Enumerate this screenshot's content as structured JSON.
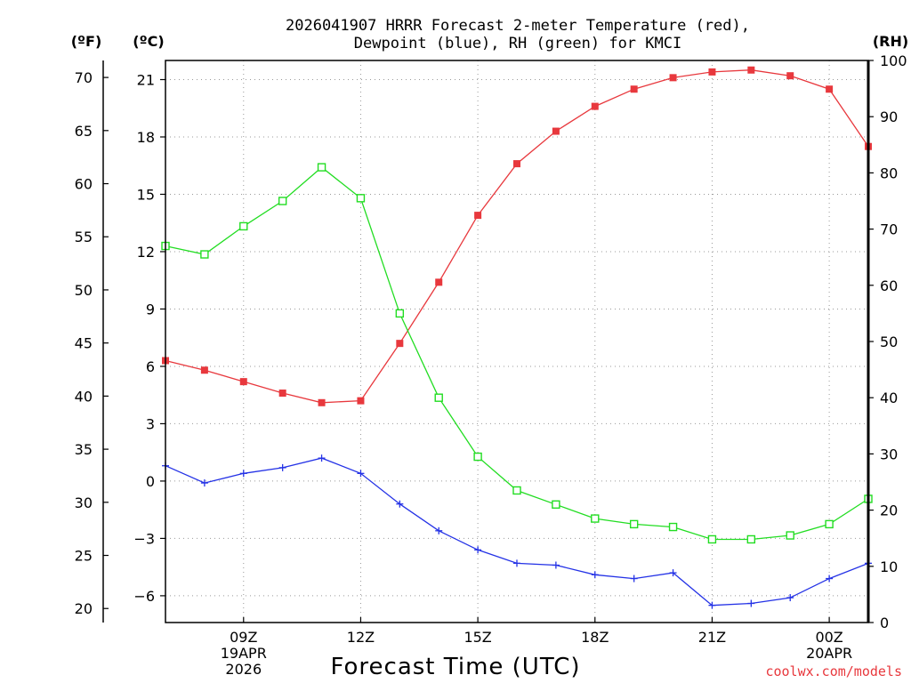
{
  "chart_data": {
    "type": "line",
    "title_line1": "2026041907 HRRR Forecast 2-meter Temperature (red),",
    "title_line2": "Dewpoint (blue), RH (green) for KMCI",
    "xlabel": "Forecast Time (UTC)",
    "credit": "coolwx.com/models",
    "units": {
      "fahrenheit": "(ºF)",
      "celsius": "(ºC)",
      "rh": "(RH)"
    },
    "x_hours": [
      7,
      8,
      9,
      10,
      11,
      12,
      13,
      14,
      15,
      16,
      17,
      18,
      19,
      20,
      21,
      22,
      23,
      24,
      25
    ],
    "xlim": [
      7,
      25
    ],
    "x_ticks": [
      {
        "hour": 9,
        "labels": [
          "09Z",
          "19APR",
          "2026"
        ]
      },
      {
        "hour": 12,
        "labels": [
          "12Z"
        ]
      },
      {
        "hour": 15,
        "labels": [
          "15Z"
        ]
      },
      {
        "hour": 18,
        "labels": [
          "18Z"
        ]
      },
      {
        "hour": 21,
        "labels": [
          "21Z"
        ]
      },
      {
        "hour": 24,
        "labels": [
          "00Z",
          "20APR"
        ]
      }
    ],
    "celsius_axis": {
      "lim": [
        -7.4,
        22.0
      ],
      "ticks": [
        21,
        18,
        15,
        12,
        9,
        6,
        3,
        0,
        -3,
        -6
      ],
      "tick_labels": [
        "21",
        "18",
        "15",
        "12",
        "9",
        "6",
        "3",
        "0",
        "−3",
        "−6"
      ]
    },
    "fahrenheit_axis": {
      "ticks": [
        70,
        65,
        60,
        55,
        50,
        45,
        40,
        35,
        30,
        25,
        20
      ],
      "tick_labels": [
        "70",
        "65",
        "60",
        "55",
        "50",
        "45",
        "40",
        "35",
        "30",
        "25",
        "20"
      ]
    },
    "rh_axis": {
      "lim": [
        0,
        100
      ],
      "ticks": [
        0,
        10,
        20,
        30,
        40,
        50,
        60,
        70,
        80,
        90,
        100
      ],
      "tick_labels": [
        "0",
        "10",
        "20",
        "30",
        "40",
        "50",
        "60",
        "70",
        "80",
        "90",
        "100"
      ]
    },
    "series": [
      {
        "name": "2-meter Temperature",
        "unit": "C",
        "color": "#e8383d",
        "marker": "filled-square",
        "values": [
          6.3,
          5.8,
          5.2,
          4.6,
          4.1,
          4.2,
          7.2,
          10.4,
          13.9,
          16.6,
          18.3,
          19.6,
          20.5,
          21.1,
          21.4,
          21.5,
          21.2,
          20.5,
          17.5
        ]
      },
      {
        "name": "Dewpoint",
        "unit": "C",
        "color": "#2432e6",
        "marker": "plus",
        "values": [
          0.8,
          -0.1,
          0.4,
          0.7,
          1.2,
          0.4,
          -1.2,
          -2.6,
          -3.6,
          -4.3,
          -4.4,
          -4.9,
          -5.1,
          -4.8,
          -6.5,
          -6.4,
          -6.1,
          -5.1,
          -4.3
        ]
      },
      {
        "name": "Relative Humidity",
        "unit": "%",
        "color": "#22dd22",
        "marker": "open-square",
        "values": [
          67,
          65.5,
          70.5,
          75,
          81,
          75.5,
          55,
          40,
          29.5,
          23.5,
          21,
          18.5,
          17.5,
          17,
          14.8,
          14.8,
          15.5,
          17.5,
          22
        ]
      }
    ]
  }
}
